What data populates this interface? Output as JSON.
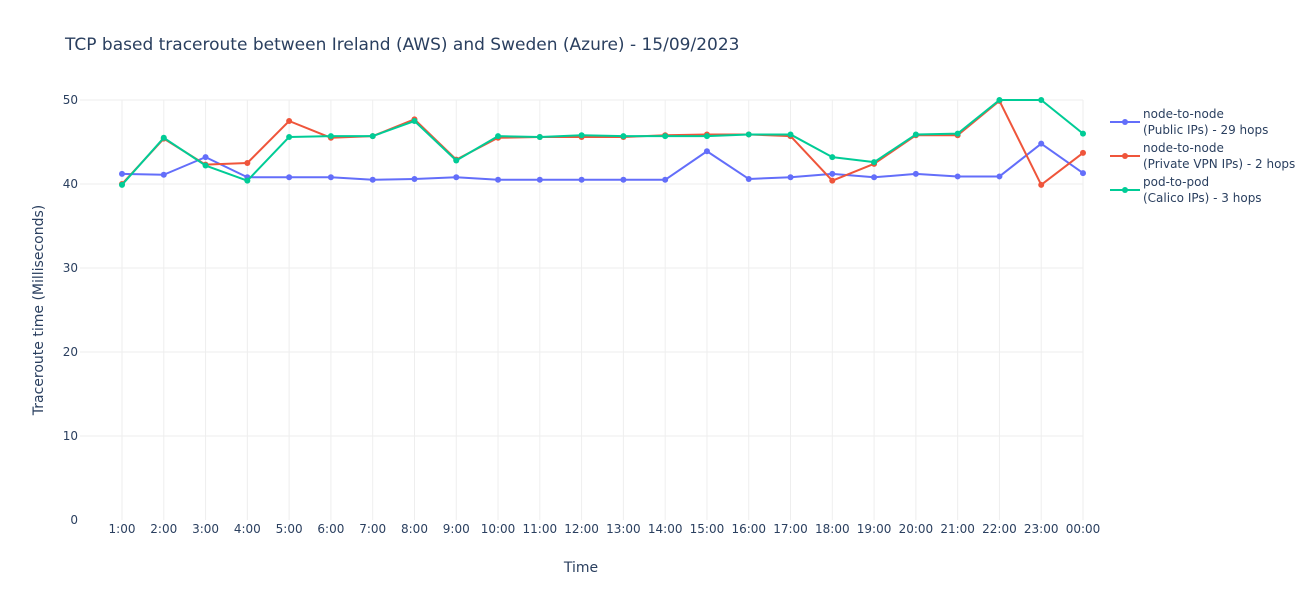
{
  "chart_data": {
    "type": "line",
    "title": "TCP based traceroute between Ireland (AWS) and Sweden (Azure)   -   15/09/2023",
    "xlabel": "Time",
    "ylabel": "Traceroute time (Milliseconds)",
    "ylim": [
      0,
      50
    ],
    "yticks": [
      "0",
      "10",
      "20",
      "30",
      "40",
      "50"
    ],
    "grid": true,
    "legend_position": "top-right",
    "x": [
      "1:00",
      "2:00",
      "3:00",
      "4:00",
      "5:00",
      "6:00",
      "7:00",
      "8:00",
      "9:00",
      "10:00",
      "11:00",
      "12:00",
      "13:00",
      "14:00",
      "15:00",
      "16:00",
      "17:00",
      "18:00",
      "19:00",
      "20:00",
      "21:00",
      "22:00",
      "23:00",
      "00:00"
    ],
    "series": [
      {
        "name_line1": "node-to-node",
        "name_line2": "(Public IPs) - 29 hops",
        "color": "#636efa",
        "values": [
          41.2,
          41.1,
          43.2,
          40.8,
          40.8,
          40.8,
          40.5,
          40.6,
          40.8,
          40.5,
          40.5,
          40.5,
          40.5,
          40.5,
          43.9,
          40.6,
          40.8,
          41.2,
          40.8,
          41.2,
          40.9,
          40.9,
          44.8,
          41.3
        ]
      },
      {
        "name_line1": "node-to-node",
        "name_line2": "(Private VPN IPs) - 2 hops",
        "color": "#ef553b",
        "values": [
          40.0,
          45.4,
          42.3,
          42.5,
          47.5,
          45.5,
          45.7,
          47.7,
          42.9,
          45.5,
          45.6,
          45.6,
          45.6,
          45.8,
          45.9,
          45.9,
          45.7,
          40.4,
          42.4,
          45.8,
          45.8,
          49.9,
          39.9,
          43.7
        ]
      },
      {
        "name_line1": "pod-to-pod",
        "name_line2": "(Calico IPs) - 3 hops",
        "color": "#00cc96",
        "values": [
          39.9,
          45.5,
          42.2,
          40.4,
          45.6,
          45.7,
          45.7,
          47.5,
          42.8,
          45.7,
          45.6,
          45.8,
          45.7,
          45.7,
          45.7,
          45.9,
          45.9,
          43.2,
          42.6,
          45.9,
          46.0,
          50.0,
          50.0,
          46.0
        ]
      }
    ]
  }
}
